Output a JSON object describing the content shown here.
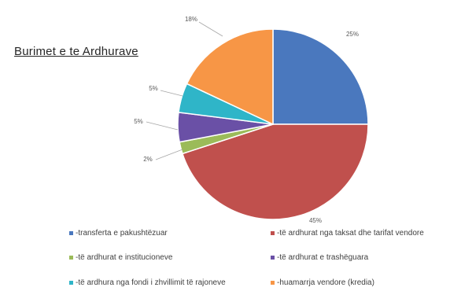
{
  "chart_data": {
    "type": "pie",
    "title": "Burimet e te Ardhurave",
    "slices": [
      {
        "name": "-transferta e pakushtëzuar",
        "value": 25,
        "label": "25%",
        "color": "#4a78be"
      },
      {
        "name": "-të ardhurat nga taksat dhe tarifat vendore",
        "value": 45,
        "label": "45%",
        "color": "#c0504d"
      },
      {
        "name": "-të ardhurat e institucioneve",
        "value": 2,
        "label": "2%",
        "color": "#9bbb59"
      },
      {
        "name": "-të ardhurat e trashëguara",
        "value": 5,
        "label": "5%",
        "color": "#6a50a6"
      },
      {
        "name": "-të ardhura nga fondi i zhvillimit të rajoneve",
        "value": 5,
        "label": "5%",
        "color": "#2fb5c8"
      },
      {
        "name": "-huamarrja vendore (kredia)",
        "value": 18,
        "label": "18%",
        "color": "#f79646"
      }
    ],
    "legend_position": "bottom"
  }
}
